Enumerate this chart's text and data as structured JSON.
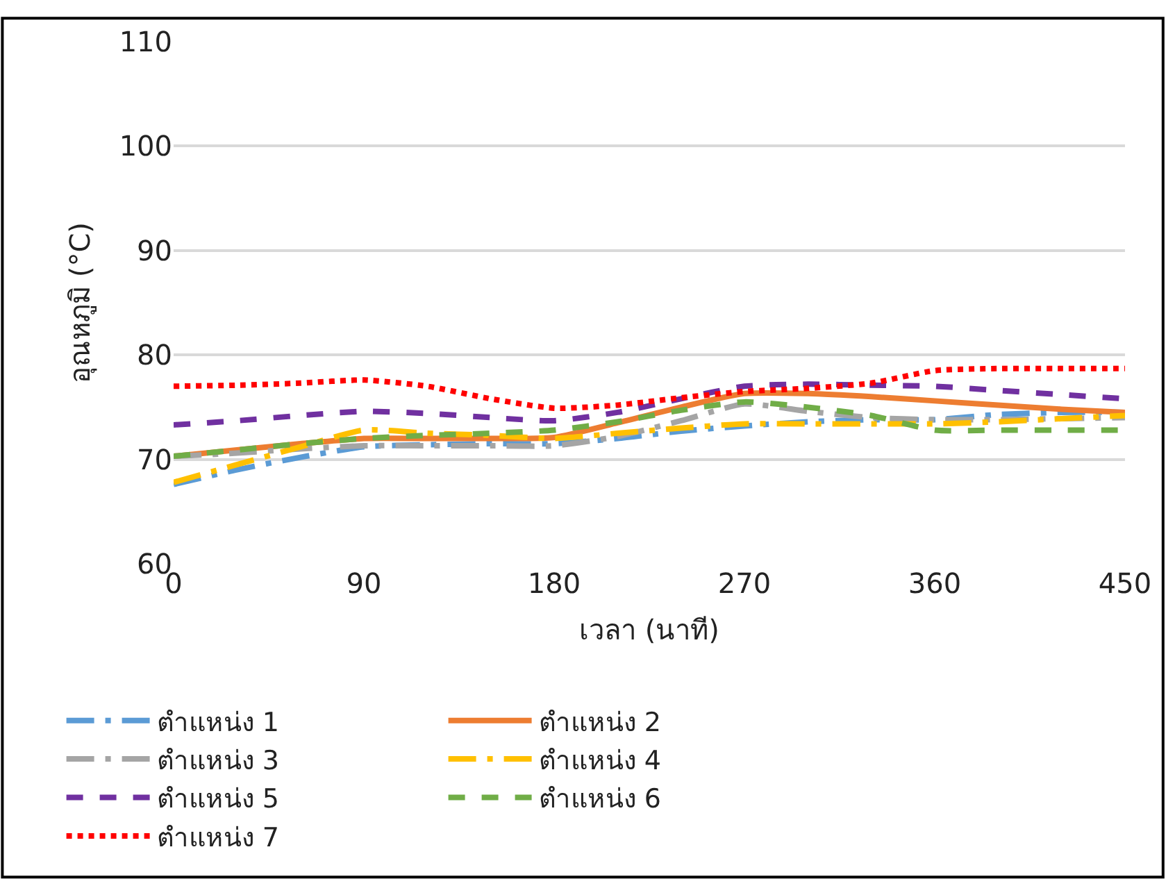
{
  "chart_data": {
    "type": "line",
    "xlabel": "เวลา (นาที)",
    "ylabel": "อุณหภูมิ (°C)",
    "x": [
      0,
      30,
      60,
      90,
      120,
      150,
      180,
      210,
      240,
      270,
      300,
      330,
      360,
      390,
      420,
      450
    ],
    "xlim": [
      0,
      450
    ],
    "xticks": [
      0,
      90,
      180,
      270,
      360,
      450
    ],
    "ylim": [
      60,
      110
    ],
    "yticks": [
      60,
      70,
      80,
      90,
      100,
      110
    ],
    "grid": "y",
    "legend": "bottom",
    "marker": "none",
    "series": [
      {
        "name": "ตำแหน่ง 1",
        "color": "#5b9bd5",
        "line_style": "dashdot",
        "values": [
          67.6,
          69.0,
          70.2,
          71.2,
          71.4,
          71.5,
          71.5,
          72.0,
          72.7,
          73.2,
          73.6,
          73.8,
          73.8,
          74.3,
          74.5,
          74.5
        ]
      },
      {
        "name": "ตำแหน่ง 2",
        "color": "#ed7d31",
        "line_style": "solid",
        "values": [
          70.3,
          70.9,
          71.5,
          72.0,
          72.0,
          72.0,
          72.1,
          73.5,
          75.0,
          76.3,
          76.3,
          76.0,
          75.6,
          75.2,
          74.8,
          74.5
        ]
      },
      {
        "name": "ตำแหน่ง 3",
        "color": "#a5a5a5",
        "line_style": "dashdot",
        "values": [
          70.3,
          70.6,
          71.0,
          71.3,
          71.3,
          71.3,
          71.3,
          72.2,
          73.7,
          75.3,
          74.6,
          74.0,
          73.8,
          73.8,
          73.9,
          74.0
        ]
      },
      {
        "name": "ตำแหน่ง 4",
        "color": "#ffc000",
        "line_style": "dashdot",
        "values": [
          67.8,
          69.5,
          71.2,
          72.8,
          72.5,
          72.3,
          72.0,
          72.5,
          73.0,
          73.4,
          73.4,
          73.4,
          73.4,
          73.6,
          73.9,
          74.2
        ]
      },
      {
        "name": "ตำแหน่ง 5",
        "color": "#7030a0",
        "line_style": "dashed",
        "values": [
          73.3,
          73.7,
          74.2,
          74.6,
          74.4,
          74.0,
          73.7,
          74.5,
          75.8,
          77.0,
          77.2,
          77.1,
          77.0,
          76.6,
          76.2,
          75.8
        ]
      },
      {
        "name": "ตำแหน่ง 6",
        "color": "#70ad47",
        "line_style": "dashed",
        "values": [
          70.3,
          70.9,
          71.5,
          72.0,
          72.3,
          72.5,
          72.8,
          73.6,
          74.7,
          75.5,
          75.0,
          74.2,
          72.8,
          72.8,
          72.8,
          72.8
        ]
      },
      {
        "name": "ตำแหน่ง 7",
        "color": "#ff0000",
        "line_style": "dotted",
        "values": [
          77.0,
          77.1,
          77.3,
          77.6,
          77.0,
          75.8,
          74.9,
          75.2,
          75.9,
          76.5,
          76.8,
          77.3,
          78.5,
          78.7,
          78.7,
          78.7
        ]
      }
    ]
  }
}
